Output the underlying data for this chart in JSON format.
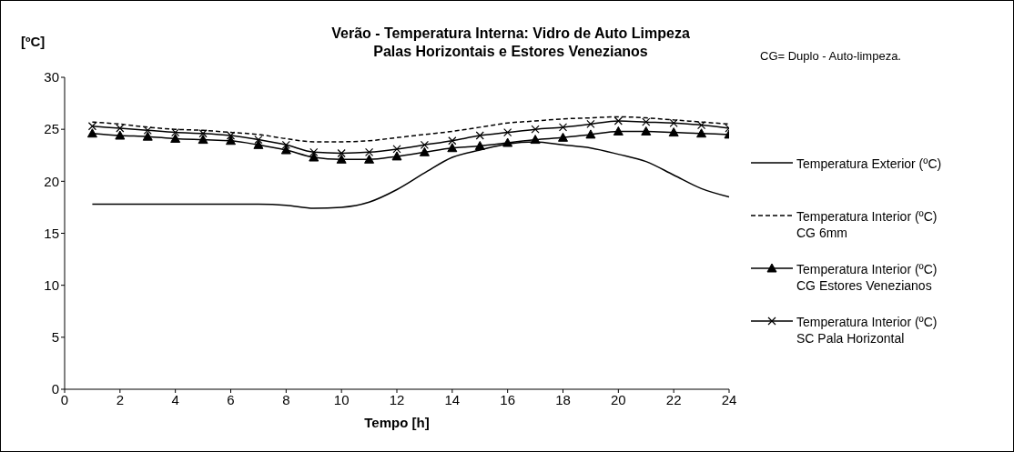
{
  "chart_data": {
    "type": "line",
    "title": "Verão - Temperatura Interna: Vidro de Auto Limpeza\nPalas Horizontais e Estores Venezianos",
    "xlabel": "Tempo [h]",
    "ylabel": "[ºC]",
    "annotations": [
      "CG= Duplo - Auto-limpeza."
    ],
    "x": [
      1,
      2,
      3,
      4,
      5,
      6,
      7,
      8,
      9,
      10,
      11,
      12,
      13,
      14,
      15,
      16,
      17,
      18,
      19,
      20,
      21,
      22,
      23,
      24
    ],
    "series": [
      {
        "name": "Temperatura Exterior (ºC)",
        "color": "#000000",
        "line_style": "solid",
        "marker": "none",
        "values": [
          17.8,
          17.8,
          17.8,
          17.8,
          17.8,
          17.8,
          17.8,
          17.7,
          17.4,
          17.5,
          18.0,
          19.2,
          20.8,
          22.3,
          23.0,
          23.6,
          23.8,
          23.5,
          23.2,
          22.6,
          21.9,
          20.6,
          19.3,
          18.5
        ]
      },
      {
        "name": "Temperatura Interior (ºC)\nCG 6mm",
        "color": "#000000",
        "line_style": "dashed",
        "marker": "none",
        "values": [
          25.7,
          25.5,
          25.2,
          25.0,
          24.9,
          24.7,
          24.5,
          24.1,
          23.8,
          23.8,
          23.9,
          24.2,
          24.5,
          24.8,
          25.2,
          25.6,
          25.8,
          26.0,
          26.1,
          26.2,
          26.1,
          25.9,
          25.7,
          25.5
        ]
      },
      {
        "name": "Temperatura Interior (ºC)\nCG Estores Venezianos",
        "color": "#000000",
        "line_style": "solid",
        "marker": "triangle",
        "values": [
          24.6,
          24.4,
          24.3,
          24.1,
          24.0,
          23.9,
          23.5,
          23.0,
          22.3,
          22.1,
          22.1,
          22.4,
          22.8,
          23.2,
          23.4,
          23.7,
          24.0,
          24.2,
          24.5,
          24.8,
          24.8,
          24.7,
          24.6,
          24.5
        ]
      },
      {
        "name": "Temperatura Interior (ºC)\nSC Pala Horizontal",
        "color": "#000000",
        "line_style": "solid",
        "marker": "cross",
        "values": [
          25.3,
          25.1,
          24.9,
          24.7,
          24.6,
          24.4,
          24.0,
          23.5,
          22.8,
          22.7,
          22.8,
          23.1,
          23.5,
          23.9,
          24.4,
          24.7,
          25.0,
          25.2,
          25.5,
          25.8,
          25.7,
          25.6,
          25.4,
          25.1
        ]
      }
    ],
    "xlim": [
      0,
      24
    ],
    "xticks": [
      0,
      2,
      4,
      6,
      8,
      10,
      12,
      14,
      16,
      18,
      20,
      22,
      24
    ],
    "ylim": [
      0,
      30
    ],
    "yticks": [
      0,
      5,
      10,
      15,
      20,
      25,
      30
    ],
    "grid": false,
    "legend": "right"
  }
}
